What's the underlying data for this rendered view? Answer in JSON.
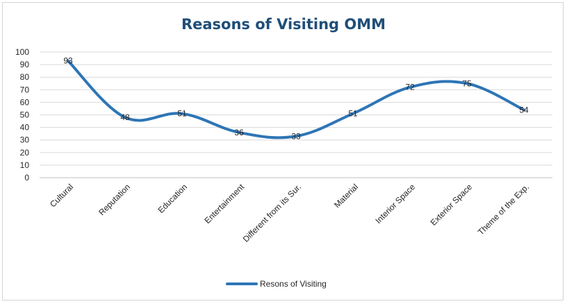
{
  "chart_data": {
    "type": "line",
    "title": "Reasons of Visiting OMM",
    "xlabel": "",
    "ylabel": "",
    "categories": [
      "Cultural",
      "Reputation",
      "Education",
      "Entertainment",
      "Different from its Sur.",
      "Material",
      "Interior Space",
      "Exterior Space",
      "Theme of the Exp."
    ],
    "series": [
      {
        "name": "Resons of Visiting",
        "values": [
          93,
          48,
          51,
          36,
          33,
          51,
          72,
          75,
          54
        ],
        "color": "#2e75b6"
      }
    ],
    "ylim": [
      0,
      100
    ],
    "yticks": [
      0,
      10,
      20,
      30,
      40,
      50,
      60,
      70,
      80,
      90,
      100
    ],
    "grid": true,
    "data_labels": true,
    "legend": "bottom"
  }
}
